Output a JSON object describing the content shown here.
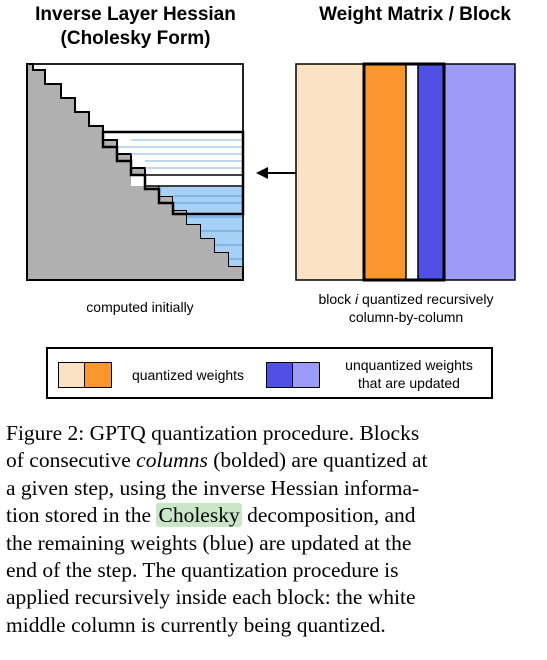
{
  "left_panel": {
    "title_line1": "Inverse Layer Hessian",
    "title_line2": "(Cholesky Form)",
    "label": "computed initially"
  },
  "right_panel": {
    "title": "Weight Matrix / Block",
    "label_part1": "block ",
    "label_var": "i",
    "label_part2": " quantized recursively",
    "label_line2": "column-by-column"
  },
  "legend": {
    "quantized": "quantized weights",
    "unquantized_line1": "unquantized weights",
    "unquantized_line2": "that are updated"
  },
  "caption": {
    "l1": "Figure 2: GPTQ quantization procedure. Blocks",
    "l2a": "of consecutive ",
    "l2b": "columns",
    "l2c": " (bolded) are quantized at",
    "l3": "a given step, using the inverse Hessian informa-",
    "l4a": "tion stored in the ",
    "l4b": "Cholesky",
    "l4c": " decomposition, and",
    "l5": "the remaining weights (blue) are updated at the",
    "l6": "end of the step.  The quantization procedure is",
    "l7": "applied recursively inside each block: the white",
    "l8": "middle column is currently being quantized."
  },
  "colors": {
    "hessian_gray": "#b0b0b0",
    "light_blue": "#a6d0f4",
    "peach": "#fbe2c4",
    "orange": "#f9962e",
    "blue": "#5050e6",
    "light_purple": "#9c9cf7",
    "highlight": "#c9e6c9"
  }
}
